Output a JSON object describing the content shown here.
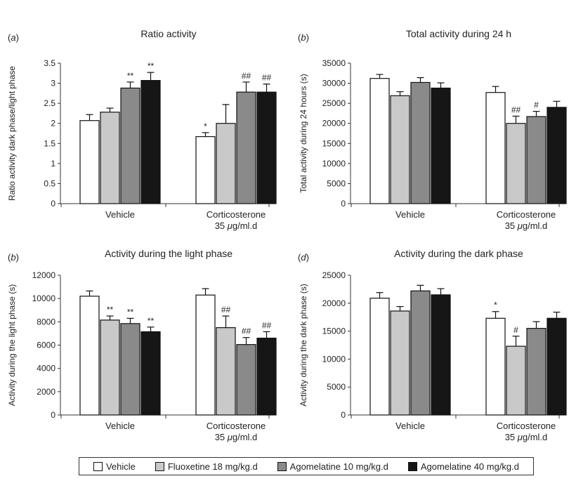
{
  "colors": {
    "series": [
      "#ffffff",
      "#c9c9c9",
      "#8a8a8a",
      "#161616"
    ],
    "stroke": "#111111",
    "axis": "#333333"
  },
  "legend": {
    "items": [
      "Vehicle",
      "Fluoxetine 18 mg/kg.d",
      "Agomelatine 10 mg/kg.d",
      "Agomelatine 40 mg/kg.d"
    ]
  },
  "chart_data": [
    {
      "type": "bar",
      "panel": "(a)",
      "title": "Ratio activity",
      "ylabel": "Ratio activity dark phase/light phase",
      "ylim": [
        0,
        3.5
      ],
      "yticks": [
        "0",
        "0.5",
        "1",
        "1.5",
        "2",
        "2.5",
        "3",
        "3.5"
      ],
      "categories": [
        "Vehicle",
        "Corticosterone 35 μg/ml.d"
      ],
      "category_lines": [
        [
          "Vehicle"
        ],
        [
          "Corticosterone",
          "35 μg/ml.d"
        ]
      ],
      "series": [
        {
          "name": "Vehicle",
          "values": [
            2.07,
            1.67
          ],
          "errors": [
            0.15,
            0.1
          ],
          "labels": [
            "",
            "*"
          ]
        },
        {
          "name": "Fluoxetine 18 mg/kg.d",
          "values": [
            2.28,
            2.0
          ],
          "errors": [
            0.1,
            0.47
          ],
          "labels": [
            "",
            ""
          ]
        },
        {
          "name": "Agomelatine 10 mg/kg.d",
          "values": [
            2.88,
            2.78
          ],
          "errors": [
            0.15,
            0.25
          ],
          "labels": [
            "**",
            "##"
          ]
        },
        {
          "name": "Agomelatine 40 mg/kg.d",
          "values": [
            3.07,
            2.78
          ],
          "errors": [
            0.2,
            0.2
          ],
          "labels": [
            "**",
            "##"
          ]
        }
      ]
    },
    {
      "type": "bar",
      "panel": "(b)",
      "title": "Total activity during  24 h",
      "ylabel": "Total activity during 24 hours (s)",
      "ylim": [
        0,
        35000
      ],
      "yticks": [
        "0",
        "5000",
        "10000",
        "15000",
        "20000",
        "25000",
        "30000",
        "35000"
      ],
      "categories": [
        "Vehicle",
        "Corticosterone 35 μg/ml.d"
      ],
      "category_lines": [
        [
          "Vehicle"
        ],
        [
          "Corticosterone",
          "35 μg/ml.d"
        ]
      ],
      "series": [
        {
          "name": "Vehicle",
          "values": [
            31200,
            27700
          ],
          "errors": [
            1000,
            1500
          ],
          "labels": [
            "",
            ""
          ]
        },
        {
          "name": "Fluoxetine 18 mg/kg.d",
          "values": [
            26900,
            20000
          ],
          "errors": [
            1000,
            1800
          ],
          "labels": [
            "",
            "##"
          ]
        },
        {
          "name": "Agomelatine 10 mg/kg.d",
          "values": [
            30200,
            21700
          ],
          "errors": [
            1200,
            1300
          ],
          "labels": [
            "",
            "#"
          ]
        },
        {
          "name": "Agomelatine 40 mg/kg.d",
          "values": [
            28800,
            24000
          ],
          "errors": [
            1300,
            1500
          ],
          "labels": [
            "",
            ""
          ]
        }
      ]
    },
    {
      "type": "bar",
      "panel": "(b)",
      "title": "Activity during the light phase",
      "ylabel": "Activity during the light phase (s)",
      "ylim": [
        0,
        12000
      ],
      "yticks": [
        "0",
        "2000",
        "4000",
        "6000",
        "8000",
        "10000",
        "12000"
      ],
      "categories": [
        "Vehicle",
        "Corticosterone 35 μg/ml.d"
      ],
      "category_lines": [
        [
          "Vehicle"
        ],
        [
          "Corticosterone",
          "35 μg/ml.d"
        ]
      ],
      "series": [
        {
          "name": "Vehicle",
          "values": [
            10200,
            10300
          ],
          "errors": [
            450,
            550
          ],
          "labels": [
            "",
            ""
          ]
        },
        {
          "name": "Fluoxetine 18 mg/kg.d",
          "values": [
            8150,
            7500
          ],
          "errors": [
            350,
            1000
          ],
          "labels": [
            "**",
            "##"
          ]
        },
        {
          "name": "Agomelatine 10 mg/kg.d",
          "values": [
            7850,
            6050
          ],
          "errors": [
            450,
            600
          ],
          "labels": [
            "**",
            "##"
          ]
        },
        {
          "name": "Agomelatine 40 mg/kg.d",
          "values": [
            7150,
            6600
          ],
          "errors": [
            400,
            550
          ],
          "labels": [
            "**",
            "##"
          ]
        }
      ]
    },
    {
      "type": "bar",
      "panel": "(d)",
      "title": "Activity during the dark phase",
      "ylabel": "Activity during the dark phase (s)",
      "ylim": [
        0,
        25000
      ],
      "yticks": [
        "0",
        "5000",
        "10000",
        "15000",
        "20000",
        "25000"
      ],
      "categories": [
        "Vehicle",
        "Corticosterone 35 μg/ml.d"
      ],
      "category_lines": [
        [
          "Vehicle"
        ],
        [
          "Corticosterone",
          "35 μg/ml.d"
        ]
      ],
      "series": [
        {
          "name": "Vehicle",
          "values": [
            20900,
            17300
          ],
          "errors": [
            1000,
            1200
          ],
          "labels": [
            "",
            "*"
          ]
        },
        {
          "name": "Fluoxetine 18 mg/kg.d",
          "values": [
            18600,
            12300
          ],
          "errors": [
            800,
            1800
          ],
          "labels": [
            "",
            "#"
          ]
        },
        {
          "name": "Agomelatine 10 mg/kg.d",
          "values": [
            22200,
            15500
          ],
          "errors": [
            1000,
            1200
          ],
          "labels": [
            "",
            ""
          ]
        },
        {
          "name": "Agomelatine 40 mg/kg.d",
          "values": [
            21500,
            17300
          ],
          "errors": [
            1100,
            1100
          ],
          "labels": [
            "",
            ""
          ]
        }
      ]
    }
  ]
}
